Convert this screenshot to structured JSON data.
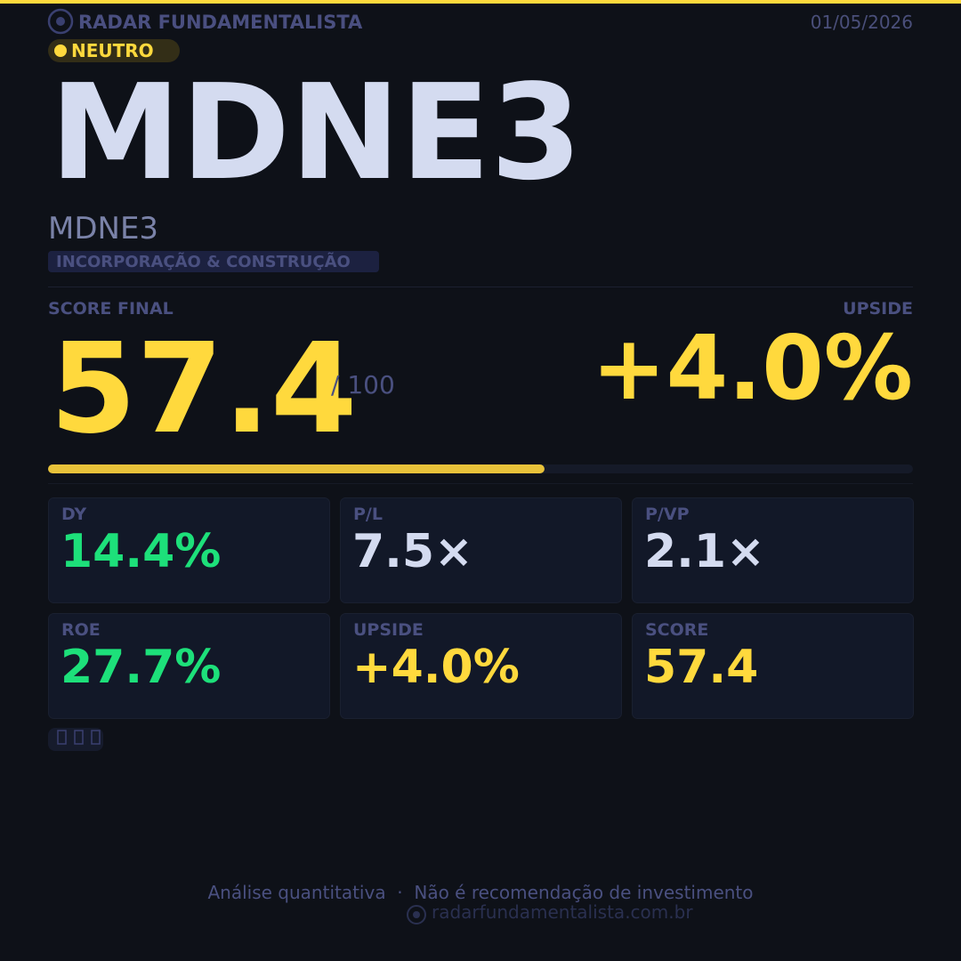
{
  "header": {
    "brand": "RADAR FUNDAMENTALISTA",
    "date": "01/05/2026",
    "badge": "NEUTRO"
  },
  "ticker": "MDNE3",
  "company": "MDNE3",
  "sector": "INCORPORAÇÃO & CONSTRUÇÃO",
  "score_label": "SCORE FINAL",
  "score": 57.4,
  "score_max": {
    "value": 100,
    "label": "/ 100"
  },
  "upside_label": "UPSIDE",
  "upside": "+4.0%",
  "metrics": [
    {
      "label": "DY",
      "value": "14.4%",
      "color": "#1de07a"
    },
    {
      "label": "P/L",
      "value": "7.5×",
      "color": "#d4dbf0"
    },
    {
      "label": "P/VP",
      "value": "2.1×",
      "color": "#d4dbf0"
    },
    {
      "label": "ROE",
      "value": "27.7%",
      "color": "#1de07a"
    },
    {
      "label": "UPSIDE",
      "value": "+4.0%",
      "color": "#ffd93d"
    },
    {
      "label": "SCORE",
      "value": "57.4",
      "color": "#ffd93d"
    }
  ],
  "footer": {
    "disclaimer": "Análise quantitativa  ·  Não é recomendação de investimento",
    "url": "radarfundamentalista.com.br"
  }
}
